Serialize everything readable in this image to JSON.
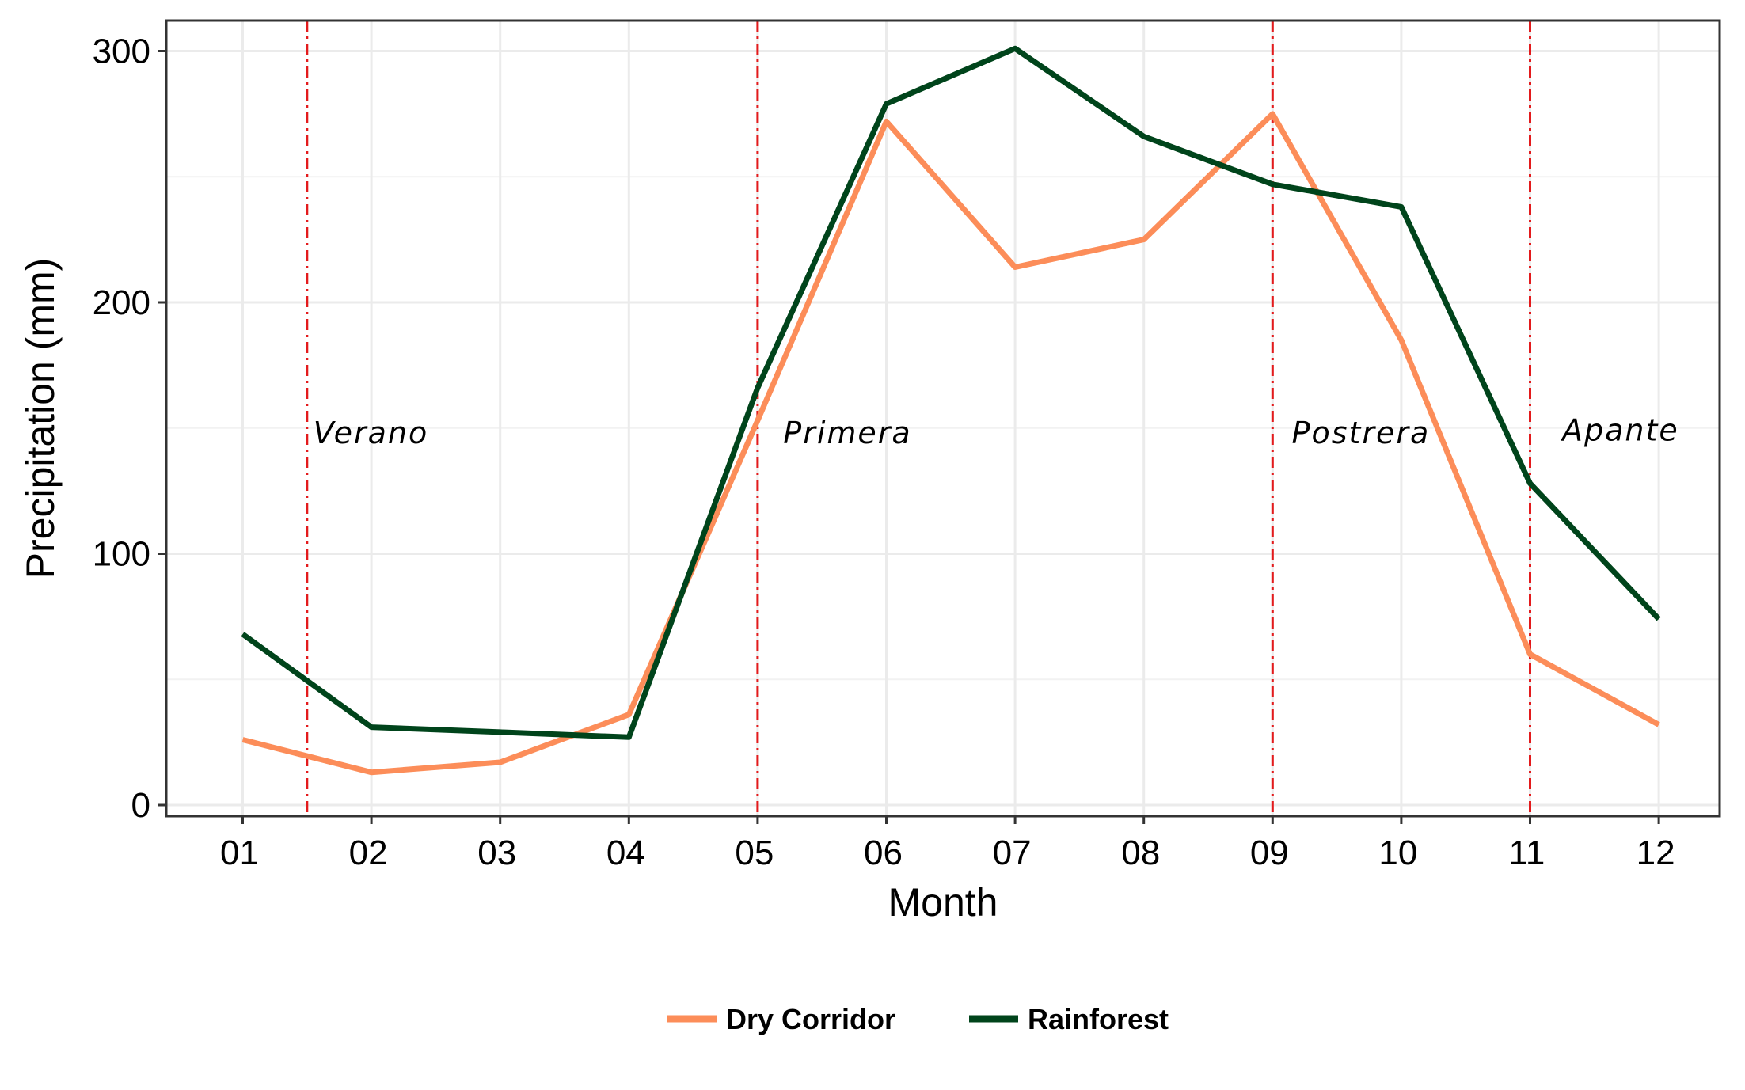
{
  "chart_data": {
    "type": "line",
    "title": "",
    "xlabel": "Month",
    "ylabel": "Precipitation (mm)",
    "categories": [
      "01",
      "02",
      "03",
      "04",
      "05",
      "06",
      "07",
      "08",
      "09",
      "10",
      "11",
      "12"
    ],
    "ylim": [
      0,
      315
    ],
    "yticks": [
      0,
      100,
      200,
      300
    ],
    "grid": true,
    "legend_position": "bottom",
    "series": [
      {
        "name": "Dry Corridor",
        "color": "#FC8D59",
        "values": [
          26,
          13,
          17,
          36,
          153,
          272,
          214,
          225,
          275,
          185,
          60,
          32
        ]
      },
      {
        "name": "Rainforest",
        "color": "#00441B",
        "values": [
          68,
          31,
          29,
          27,
          166,
          279,
          301,
          266,
          247,
          238,
          128,
          74
        ]
      }
    ],
    "season_lines": {
      "color": "#E31A1C",
      "positions": [
        1.5,
        5,
        9,
        11
      ]
    },
    "annotations": [
      {
        "text": "Verano",
        "x": 1.5,
        "y": 144
      },
      {
        "text": "Primera",
        "x": 5.15,
        "y": 144
      },
      {
        "text": "Postrera",
        "x": 9.1,
        "y": 144
      },
      {
        "text": "Apante",
        "x": 11.2,
        "y": 145
      }
    ]
  }
}
